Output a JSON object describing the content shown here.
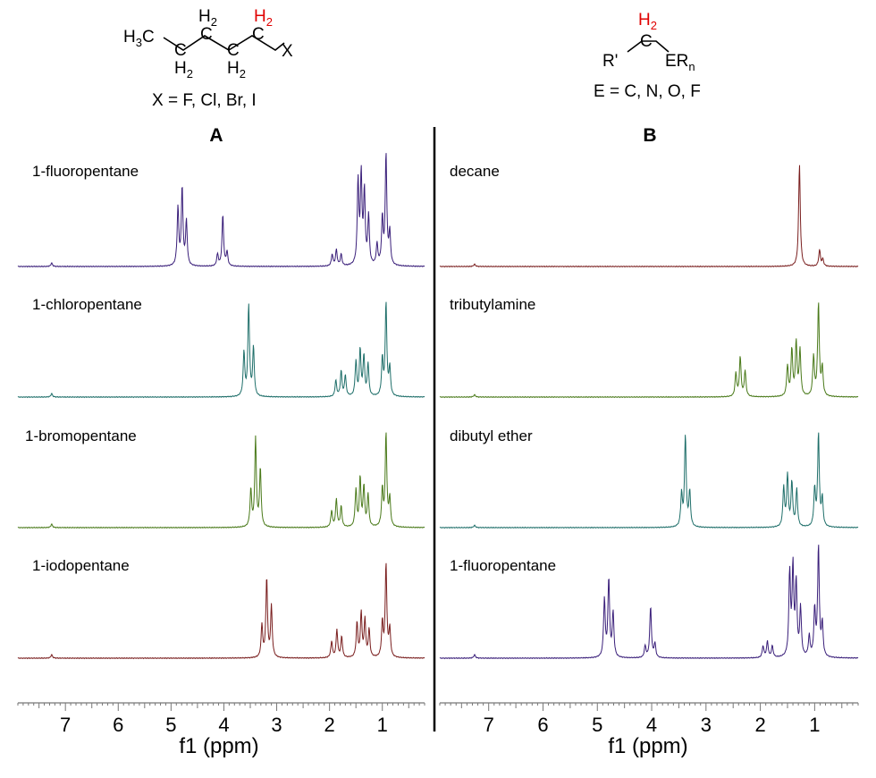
{
  "structures": {
    "left": {
      "ch3": "H",
      "ch3_sub": "3",
      "c1": "C",
      "c2": "C",
      "c3": "C",
      "c4": "C",
      "h_a": "H",
      "h_a_sub": "2",
      "h_b": "H",
      "h_b_sub": "2",
      "h_c": "H",
      "h_c_sub": "2",
      "h_red": "H",
      "h_red_sub": "2",
      "x": "X",
      "caption": "X = F, Cl, Br, I"
    },
    "right": {
      "h_red": "H",
      "h_red_sub": "2",
      "c": "C",
      "r": "R'",
      "er": "ER",
      "er_sub": "n",
      "caption": "E = C, N, O, F"
    }
  },
  "colors": {
    "fluoro": "#3a1f7a",
    "chloro": "#1f6f6a",
    "bromo": "#4a7a1a",
    "iodo": "#7a1f1f",
    "decane": "#7a1f1f",
    "tributylamine": "#4a7a1a",
    "dibutylether": "#1f6f6a"
  },
  "chart_data": [
    {
      "type": "line",
      "panel": "A",
      "xlabel": "f1 (ppm)",
      "xlim": [
        7.9,
        0.2
      ],
      "xticks": [
        7,
        6,
        5,
        4,
        3,
        2,
        1
      ],
      "series": [
        {
          "name": "1-fluoropentane",
          "color": "#3a1f7a",
          "peaks": [
            [
              4.87,
              0.5
            ],
            [
              4.79,
              0.67
            ],
            [
              4.71,
              0.38
            ],
            [
              4.12,
              0.1
            ],
            [
              4.02,
              0.44
            ],
            [
              3.94,
              0.12
            ],
            [
              1.95,
              0.1
            ],
            [
              1.87,
              0.14
            ],
            [
              1.78,
              0.1
            ],
            [
              1.46,
              0.72
            ],
            [
              1.4,
              0.76
            ],
            [
              1.34,
              0.62
            ],
            [
              1.26,
              0.42
            ],
            [
              1.1,
              0.18
            ],
            [
              1.0,
              0.4
            ],
            [
              0.93,
              0.95
            ],
            [
              0.86,
              0.28
            ],
            [
              7.26,
              0.03
            ]
          ]
        },
        {
          "name": "1-chloropentane",
          "color": "#1f6f6a",
          "peaks": [
            [
              3.62,
              0.38
            ],
            [
              3.53,
              0.78
            ],
            [
              3.44,
              0.42
            ],
            [
              1.88,
              0.14
            ],
            [
              1.78,
              0.22
            ],
            [
              1.7,
              0.18
            ],
            [
              1.5,
              0.3
            ],
            [
              1.42,
              0.4
            ],
            [
              1.35,
              0.34
            ],
            [
              1.27,
              0.28
            ],
            [
              1.0,
              0.32
            ],
            [
              0.93,
              0.8
            ],
            [
              0.86,
              0.24
            ],
            [
              7.26,
              0.03
            ]
          ]
        },
        {
          "name": "1-bromopentane",
          "color": "#4a7a1a",
          "peaks": [
            [
              3.49,
              0.32
            ],
            [
              3.4,
              0.76
            ],
            [
              3.31,
              0.5
            ],
            [
              1.96,
              0.14
            ],
            [
              1.87,
              0.24
            ],
            [
              1.78,
              0.18
            ],
            [
              1.5,
              0.32
            ],
            [
              1.42,
              0.42
            ],
            [
              1.35,
              0.34
            ],
            [
              1.27,
              0.28
            ],
            [
              1.0,
              0.32
            ],
            [
              0.93,
              0.8
            ],
            [
              0.86,
              0.24
            ],
            [
              7.26,
              0.03
            ]
          ]
        },
        {
          "name": "1-iodopentane",
          "color": "#7a1f1f",
          "peaks": [
            [
              3.28,
              0.28
            ],
            [
              3.19,
              0.68
            ],
            [
              3.1,
              0.44
            ],
            [
              1.96,
              0.14
            ],
            [
              1.86,
              0.24
            ],
            [
              1.77,
              0.18
            ],
            [
              1.48,
              0.3
            ],
            [
              1.4,
              0.38
            ],
            [
              1.33,
              0.32
            ],
            [
              1.25,
              0.24
            ],
            [
              1.0,
              0.3
            ],
            [
              0.93,
              0.8
            ],
            [
              0.86,
              0.24
            ],
            [
              7.26,
              0.03
            ]
          ]
        }
      ]
    },
    {
      "type": "line",
      "panel": "B",
      "xlabel": "f1 (ppm)",
      "xlim": [
        7.9,
        0.2
      ],
      "xticks": [
        7,
        6,
        5,
        4,
        3,
        2,
        1
      ],
      "series": [
        {
          "name": "decane",
          "color": "#7a1f1f",
          "peaks": [
            [
              1.28,
              0.88
            ],
            [
              0.91,
              0.14
            ],
            [
              0.85,
              0.06
            ],
            [
              7.26,
              0.02
            ]
          ]
        },
        {
          "name": "tributylamine",
          "color": "#4a7a1a",
          "peaks": [
            [
              2.45,
              0.2
            ],
            [
              2.37,
              0.34
            ],
            [
              2.28,
              0.22
            ],
            [
              1.5,
              0.26
            ],
            [
              1.42,
              0.4
            ],
            [
              1.34,
              0.46
            ],
            [
              1.27,
              0.4
            ],
            [
              1.02,
              0.34
            ],
            [
              0.93,
              0.8
            ],
            [
              0.86,
              0.24
            ],
            [
              7.26,
              0.02
            ]
          ]
        },
        {
          "name": "dibutyl ether",
          "color": "#1f6f6a",
          "peaks": [
            [
              3.45,
              0.28
            ],
            [
              3.38,
              0.78
            ],
            [
              3.3,
              0.3
            ],
            [
              1.57,
              0.34
            ],
            [
              1.5,
              0.44
            ],
            [
              1.42,
              0.38
            ],
            [
              1.33,
              0.32
            ],
            [
              1.0,
              0.32
            ],
            [
              0.93,
              0.8
            ],
            [
              0.86,
              0.24
            ],
            [
              7.26,
              0.02
            ]
          ]
        },
        {
          "name": "1-fluoropentane",
          "color": "#3a1f7a",
          "peaks": [
            [
              4.87,
              0.5
            ],
            [
              4.79,
              0.67
            ],
            [
              4.71,
              0.38
            ],
            [
              4.12,
              0.1
            ],
            [
              4.02,
              0.44
            ],
            [
              3.94,
              0.12
            ],
            [
              1.95,
              0.1
            ],
            [
              1.87,
              0.14
            ],
            [
              1.78,
              0.1
            ],
            [
              1.46,
              0.72
            ],
            [
              1.4,
              0.76
            ],
            [
              1.34,
              0.62
            ],
            [
              1.26,
              0.42
            ],
            [
              1.1,
              0.18
            ],
            [
              1.0,
              0.4
            ],
            [
              0.93,
              0.95
            ],
            [
              0.86,
              0.28
            ],
            [
              7.26,
              0.03
            ]
          ]
        }
      ]
    }
  ],
  "panels": {
    "a": "A",
    "b": "B"
  }
}
